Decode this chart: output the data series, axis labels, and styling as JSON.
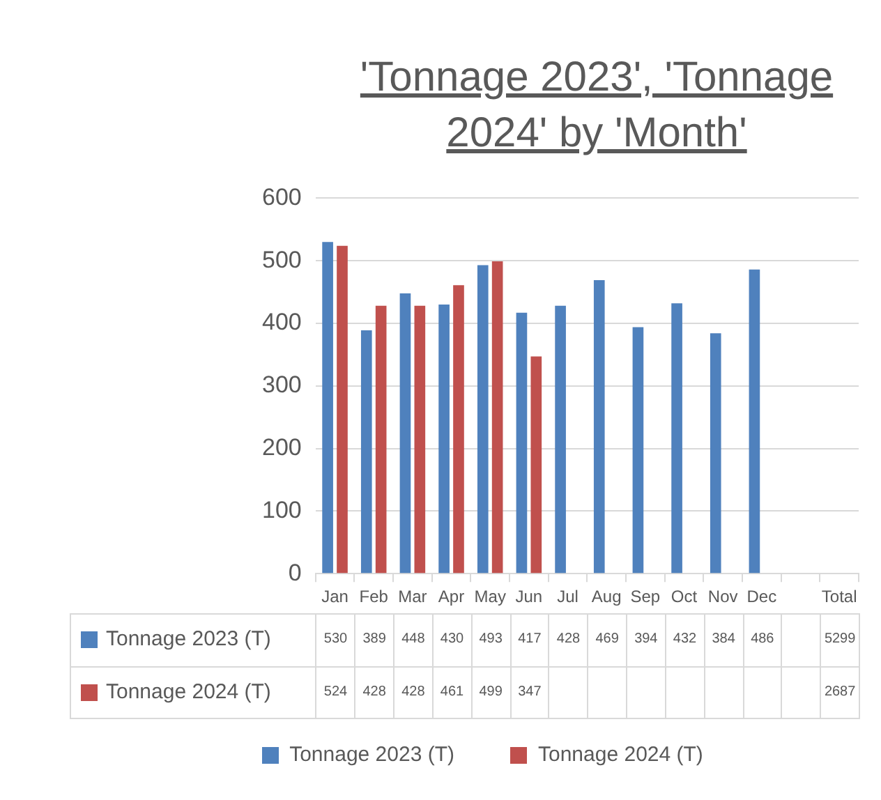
{
  "chart_data": {
    "type": "bar",
    "title": "'Tonnage 2023', 'Tonnage 2024' by 'Month'",
    "categories": [
      "Jan",
      "Feb",
      "Mar",
      "Apr",
      "May",
      "Jun",
      "Jul",
      "Aug",
      "Sep",
      "Oct",
      "Nov",
      "Dec",
      null,
      "Total"
    ],
    "series": [
      {
        "name": "Tonnage 2023 (T)",
        "color": "#4f81bd",
        "values": [
          530,
          389,
          448,
          430,
          493,
          417,
          428,
          469,
          394,
          432,
          384,
          486,
          null,
          null
        ],
        "value_labels": [
          "530",
          "389",
          "448",
          "430",
          "493",
          "417",
          "428",
          "469",
          "394",
          "432",
          "384",
          "486",
          null,
          "5299"
        ]
      },
      {
        "name": "Tonnage 2024 (T)",
        "color": "#c0504d",
        "values": [
          524,
          428,
          428,
          461,
          499,
          347,
          null,
          null,
          null,
          null,
          null,
          null,
          null,
          null
        ],
        "value_labels": [
          "524",
          "428",
          "428",
          "461",
          "499",
          "347",
          null,
          null,
          null,
          null,
          null,
          null,
          null,
          "2687"
        ]
      }
    ],
    "ylim": [
      0,
      600
    ],
    "yticks": [
      0,
      100,
      200,
      300,
      400,
      500,
      600
    ],
    "grid": "y",
    "legend": "bottom"
  }
}
